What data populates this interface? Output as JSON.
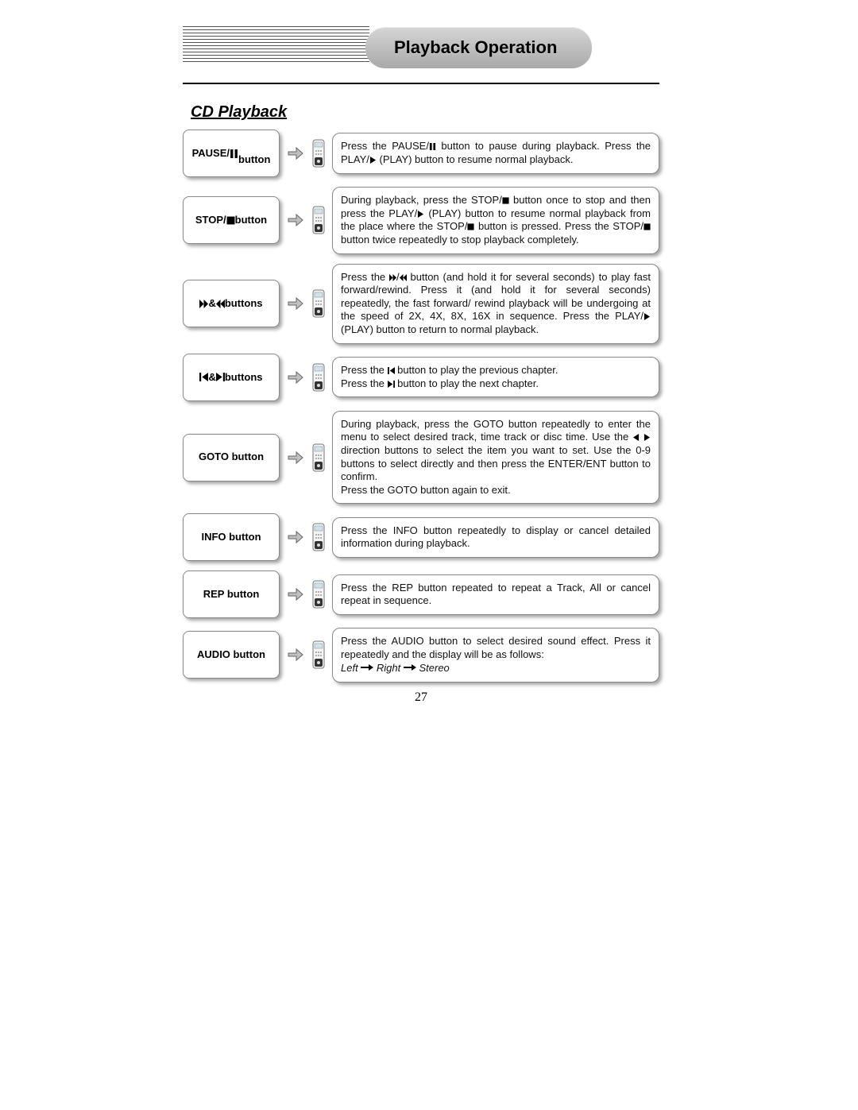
{
  "header": {
    "title": "Playback Operation"
  },
  "section": {
    "title": "CD Playback"
  },
  "pageNumber": "27",
  "colors": {
    "headerGradTop": "#d6d6d6",
    "headerGradBot": "#a9a9a9",
    "boxBorder": "#888888",
    "shadow": "rgba(0,0,0,.35)",
    "arrowFill": "#b8b8b8",
    "arrowStroke": "#555555"
  },
  "icons": {
    "pause": "pause",
    "play": "play-right",
    "stop": "stop-square",
    "ffwd": "fast-forward",
    "rwnd": "fast-rewind",
    "prev": "skip-prev",
    "next": "skip-next",
    "left": "tri-left",
    "right": "tri-right"
  },
  "rows": [
    {
      "id": "pause",
      "labelParts": [
        "PAUSE/",
        {
          "icon": "pause"
        },
        " button"
      ],
      "labelMultiline": true,
      "desc": [
        "Press the PAUSE/",
        {
          "icon": "pause"
        },
        " button to pause during playback. Press the PLAY/",
        {
          "icon": "play"
        },
        " (PLAY) button to resume normal playback."
      ]
    },
    {
      "id": "stop",
      "labelParts": [
        "STOP/",
        {
          "icon": "stop"
        },
        " button"
      ],
      "desc": [
        "During playback, press the STOP/",
        {
          "icon": "stop"
        },
        " button once to stop and then press the PLAY/",
        {
          "icon": "play"
        },
        " (PLAY) button to resume normal playback from the place where the STOP/",
        {
          "icon": "stop"
        },
        " button is pressed. Press the STOP/",
        {
          "icon": "stop"
        },
        " button twice repeatedly to stop playback completely."
      ]
    },
    {
      "id": "ffrw",
      "labelParts": [
        {
          "icon": "ffwd"
        },
        "&",
        {
          "icon": "rwnd"
        },
        " buttons"
      ],
      "desc": [
        "Press the ",
        {
          "icon": "ffwd"
        },
        "/",
        {
          "icon": "rwnd"
        },
        " button (and hold it for several seconds) to play fast forward/rewind. Press it (and hold it for several seconds) repeatedly, the fast forward/ rewind playback will be undergoing at the speed of 2X, 4X, 8X, 16X in sequence. Press the PLAY/",
        {
          "icon": "play"
        },
        " (PLAY) button to return to normal playback."
      ]
    },
    {
      "id": "skip",
      "labelParts": [
        {
          "icon": "prev"
        },
        "&",
        {
          "icon": "next"
        },
        " buttons"
      ],
      "desc": [
        "Press the ",
        {
          "icon": "prev"
        },
        " button to play the previous chapter.\nPress the ",
        {
          "icon": "next"
        },
        " button to play the next chapter."
      ]
    },
    {
      "id": "goto",
      "labelParts": [
        "GOTO button"
      ],
      "desc": [
        "During playback, press the GOTO button repeatedly to enter the menu to select desired track, time track or disc time. Use the ",
        {
          "icon": "left"
        },
        " ",
        {
          "icon": "right"
        },
        " direction buttons to select the item you want to set. Use the 0-9 buttons to select directly and then press the ENTER/ENT button to confirm.\nPress the GOTO button again to exit."
      ]
    },
    {
      "id": "info",
      "labelParts": [
        "INFO button"
      ],
      "desc": [
        "Press the INFO button repeatedly to display or cancel detailed information during playback."
      ]
    },
    {
      "id": "rep",
      "labelParts": [
        "REP button"
      ],
      "desc": [
        "Press the REP button repeated to repeat a Track, All or cancel repeat in sequence."
      ]
    },
    {
      "id": "audio",
      "labelParts": [
        "AUDIO button"
      ],
      "desc": [
        "Press the AUDIO button to select desired sound effect. Press it repeatedly and the display will be as follows:"
      ],
      "sequence": [
        "Left",
        "Right",
        "Stereo"
      ]
    }
  ]
}
